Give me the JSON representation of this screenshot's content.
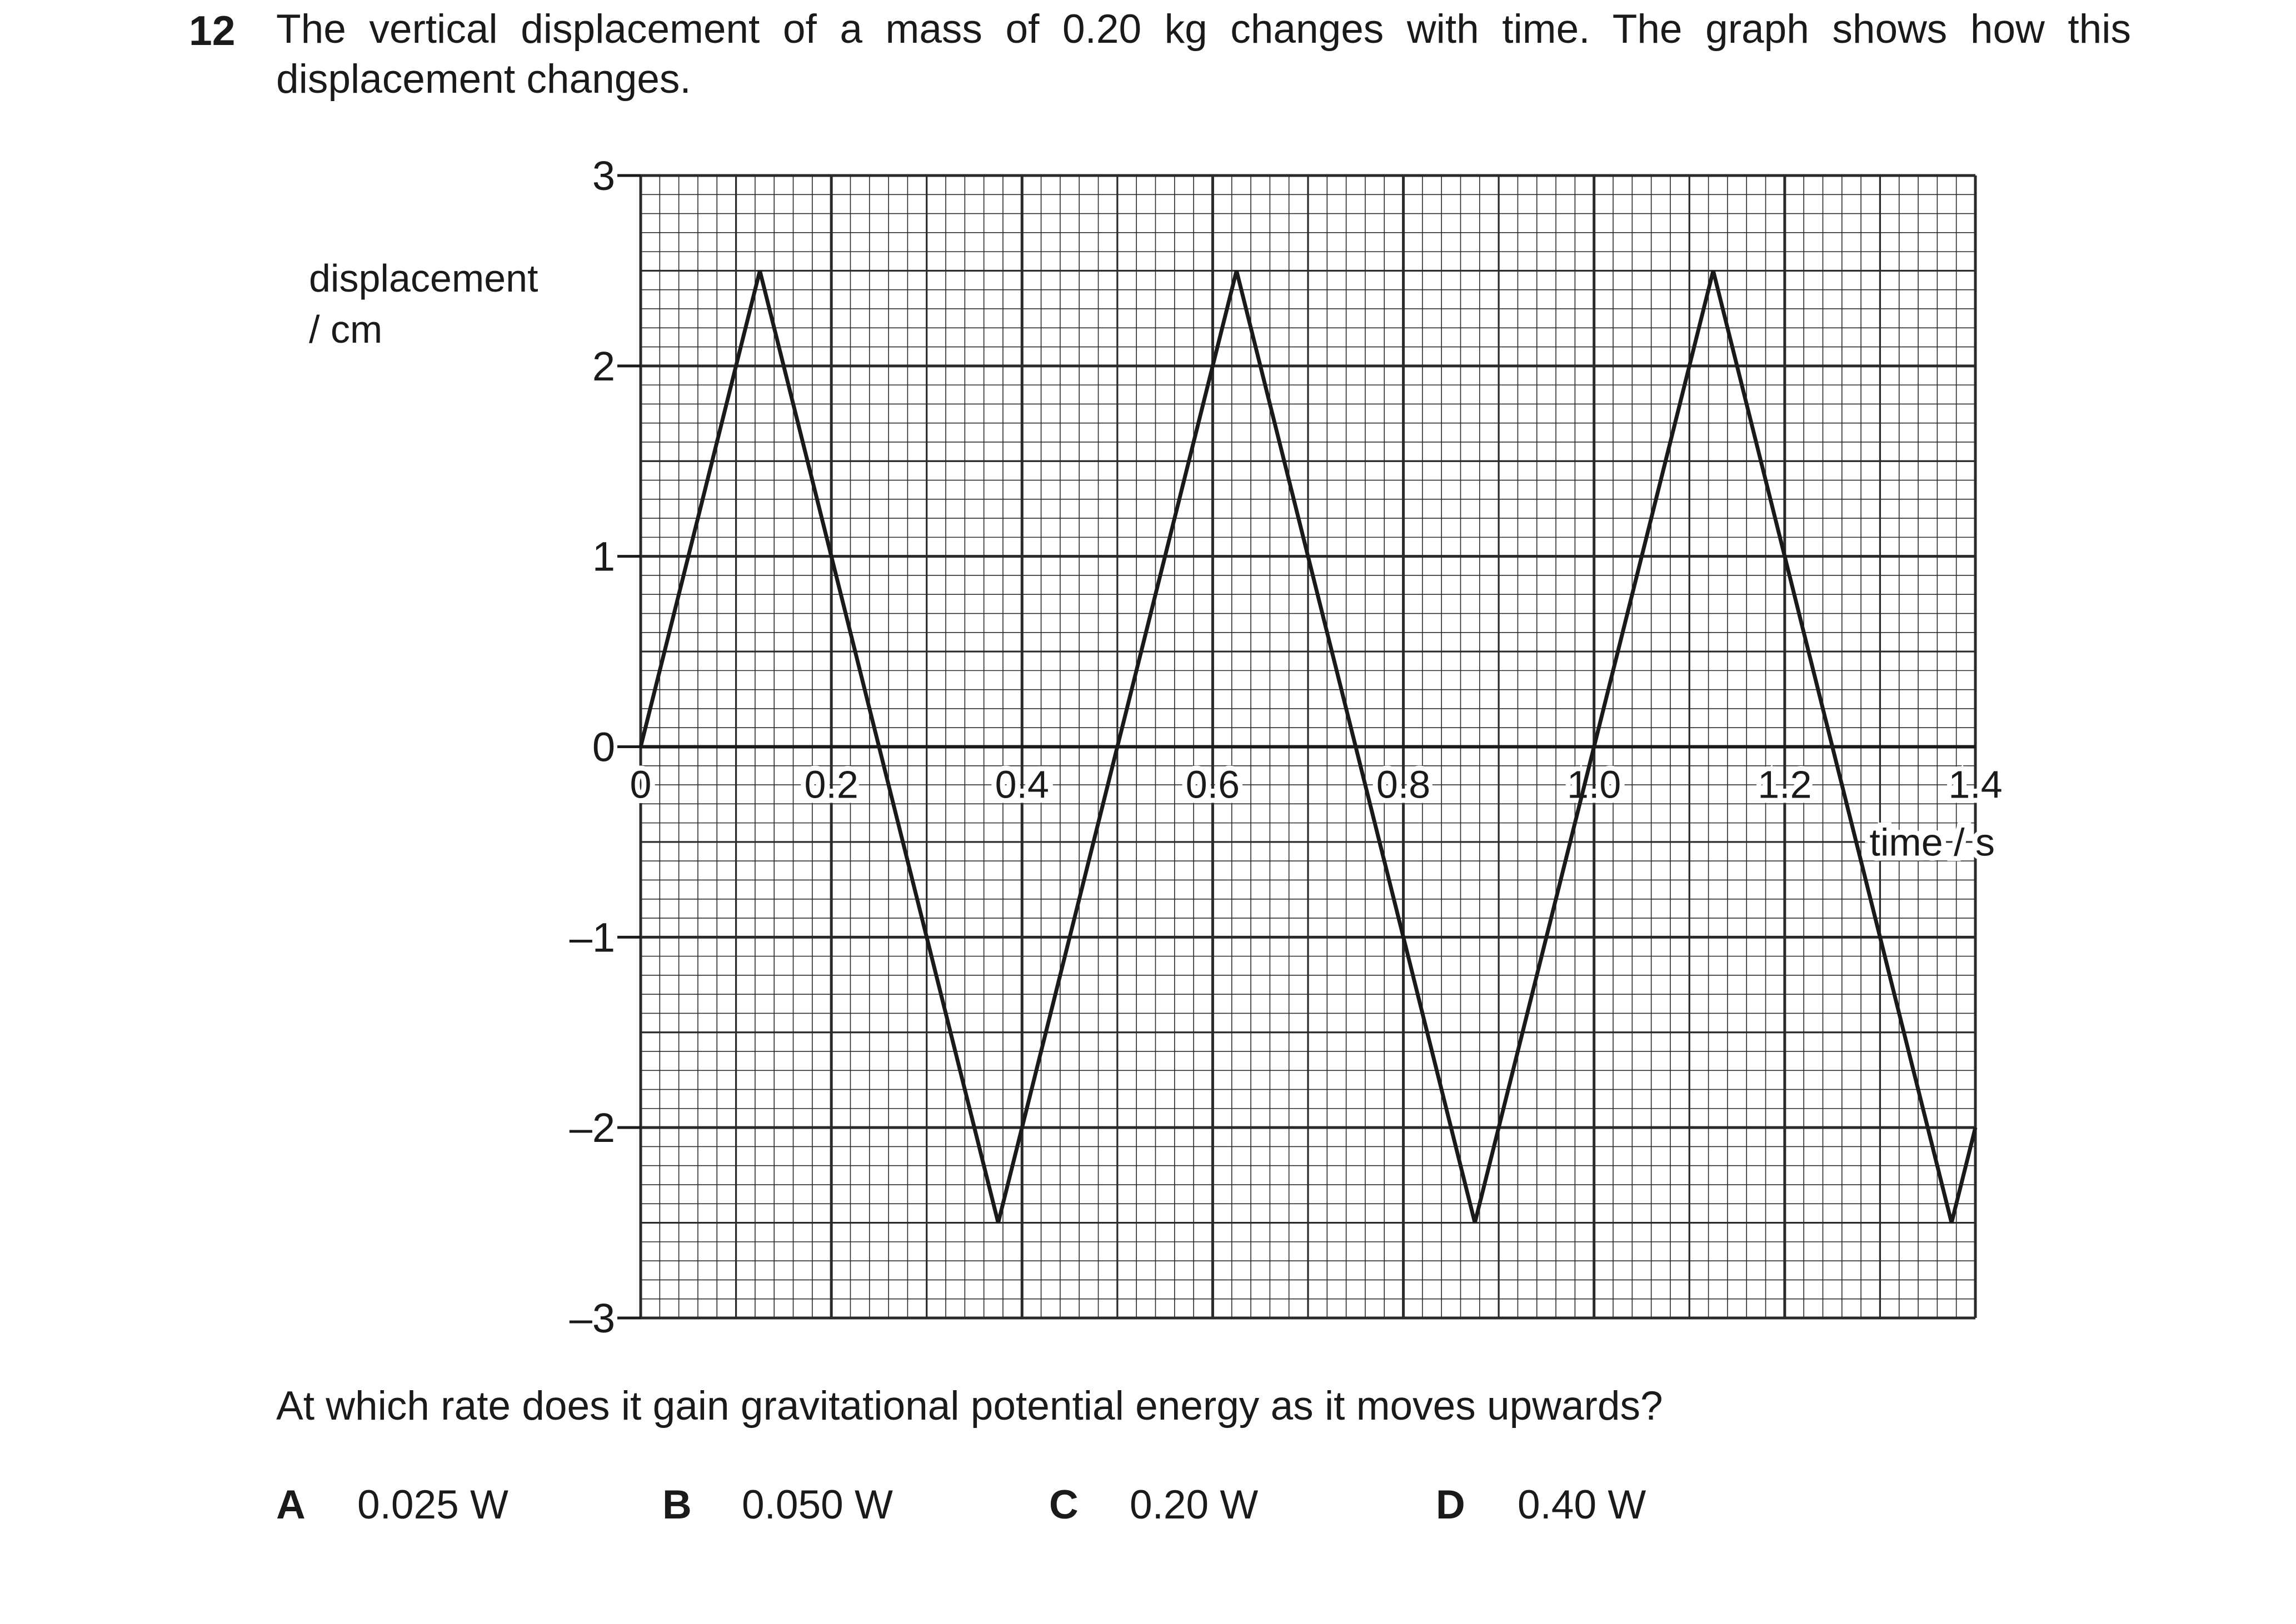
{
  "question": {
    "number": "12",
    "stem": "The vertical displacement of a mass of 0.20 kg changes with time. The graph shows how this displacement changes.",
    "prompt": "At which rate does it gain gravitational potential energy as it moves upwards?",
    "options": [
      {
        "letter": "A",
        "text": "0.025 W"
      },
      {
        "letter": "B",
        "text": "0.050 W"
      },
      {
        "letter": "C",
        "text": "0.20 W"
      },
      {
        "letter": "D",
        "text": "0.40 W"
      }
    ]
  },
  "chart_data": {
    "type": "line",
    "title": "",
    "xlabel": "time / s",
    "ylabel": "displacement\n/ cm",
    "xlim": [
      0,
      1.4
    ],
    "ylim": [
      -3,
      3
    ],
    "grid": true,
    "x_ticks": [
      "0",
      "0.2",
      "0.4",
      "0.6",
      "0.8",
      "1.0",
      "1.2",
      "1.4"
    ],
    "y_ticks": [
      "–3",
      "–2",
      "–1",
      "0",
      "1",
      "2",
      "3"
    ],
    "x": [
      0,
      0.125,
      0.375,
      0.625,
      0.875,
      1.125,
      1.375,
      1.4
    ],
    "y": [
      0,
      2.5,
      -2.5,
      2.5,
      -2.5,
      2.5,
      -2.5,
      -2
    ]
  }
}
